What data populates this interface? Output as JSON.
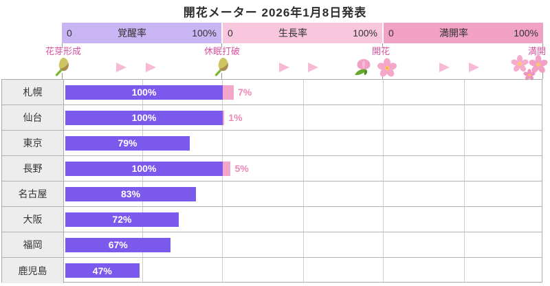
{
  "title": "開花メーター 2026年1月8日発表",
  "colors": {
    "awakening_bar": "#7b59ec",
    "growth_bar": "#f2a5c8",
    "growth_value_text": "#ee86b6",
    "bar_value_text": "#ffffff",
    "scale_awakening_bg": "#c9b5f3",
    "scale_growth_bg": "#f8c7dd",
    "scale_fullbloom_bg": "#f1a2c4",
    "stage_text": "#d6539e",
    "arrow": "#f6b9d6"
  },
  "scales": [
    {
      "name": "覚醒率",
      "min_label": "0",
      "max_label": "100%"
    },
    {
      "name": "生長率",
      "min_label": "0",
      "max_label": "100%"
    },
    {
      "name": "満開率",
      "min_label": "0",
      "max_label": "100%"
    }
  ],
  "stages": [
    {
      "label": "花芽形成",
      "icon": "bud-icon"
    },
    {
      "label": "休眠打破",
      "icon": "bud-icon"
    },
    {
      "label": "開花",
      "icon": "tulip-and-blossom-icon"
    },
    {
      "label": "満開",
      "icon": "blossom-cluster-icon"
    }
  ],
  "rows": [
    {
      "city": "札幌",
      "awakening": 100,
      "awakening_label": "100%",
      "growth": 7,
      "growth_label": "7%"
    },
    {
      "city": "仙台",
      "awakening": 100,
      "awakening_label": "100%",
      "growth": 1,
      "growth_label": "1%"
    },
    {
      "city": "東京",
      "awakening": 79,
      "awakening_label": "79%"
    },
    {
      "city": "長野",
      "awakening": 100,
      "awakening_label": "100%",
      "growth": 5,
      "growth_label": "5%"
    },
    {
      "city": "名古屋",
      "awakening": 83,
      "awakening_label": "83%"
    },
    {
      "city": "大阪",
      "awakening": 72,
      "awakening_label": "72%"
    },
    {
      "city": "福岡",
      "awakening": 67,
      "awakening_label": "67%"
    },
    {
      "city": "鹿児島",
      "awakening": 47,
      "awakening_label": "47%"
    }
  ],
  "chart_data": {
    "type": "bar",
    "orientation": "horizontal",
    "title": "開花メーター 2026年1月8日発表",
    "categories": [
      "札幌",
      "仙台",
      "東京",
      "長野",
      "名古屋",
      "大阪",
      "福岡",
      "鹿児島"
    ],
    "series": [
      {
        "name": "覚醒率",
        "values": [
          100,
          100,
          79,
          100,
          83,
          72,
          67,
          47
        ]
      },
      {
        "name": "生長率",
        "values": [
          7,
          1,
          0,
          5,
          0,
          0,
          0,
          0
        ]
      },
      {
        "name": "満開率",
        "values": [
          0,
          0,
          0,
          0,
          0,
          0,
          0,
          0
        ]
      }
    ],
    "axis_segments": [
      {
        "name": "覚醒率",
        "min": 0,
        "max": 100
      },
      {
        "name": "生長率",
        "min": 0,
        "max": 100
      },
      {
        "name": "満開率",
        "min": 0,
        "max": 100
      }
    ],
    "stage_milestones": [
      "花芽形成",
      "休眠打破",
      "開花",
      "満開"
    ],
    "grid": true,
    "value_labels": "inside-bars"
  }
}
